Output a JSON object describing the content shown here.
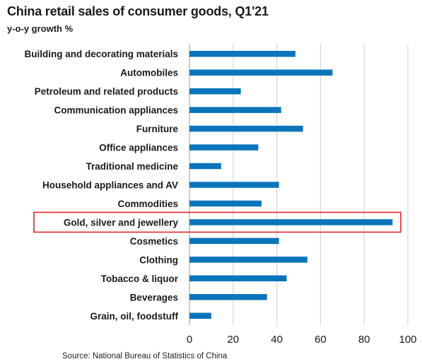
{
  "chart_data": {
    "type": "bar",
    "orientation": "horizontal",
    "title": "China retail sales of consumer goods, Q1'21",
    "subtitle": "y-o-y growth %",
    "source": "Source: National Bureau of Statistics of China",
    "categories": [
      "Building and decorating materials",
      "Automobiles",
      "Petroleum and related products",
      "Communication appliances",
      "Furniture",
      "Office appliances",
      "Traditional medicine",
      "Household appliances and AV",
      "Commodities",
      "Gold, silver and jewellery",
      "Cosmetics",
      "Clothing",
      "Tobacco & liquor",
      "Beverages",
      "Grain, oil, foodstuff"
    ],
    "values": [
      48.5,
      65.5,
      23.5,
      42.0,
      52.0,
      31.5,
      14.5,
      41.0,
      33.0,
      93.0,
      41.0,
      54.0,
      44.5,
      35.5,
      10.0
    ],
    "highlight": "Gold, silver and jewellery",
    "xlim": [
      0,
      100
    ],
    "xticks": [
      0,
      20,
      40,
      60,
      80,
      100
    ],
    "grid": true,
    "colors": {
      "bar": "#0a75bb",
      "grid": "#cfcfcf",
      "highlight_box": "#e0262b"
    }
  }
}
